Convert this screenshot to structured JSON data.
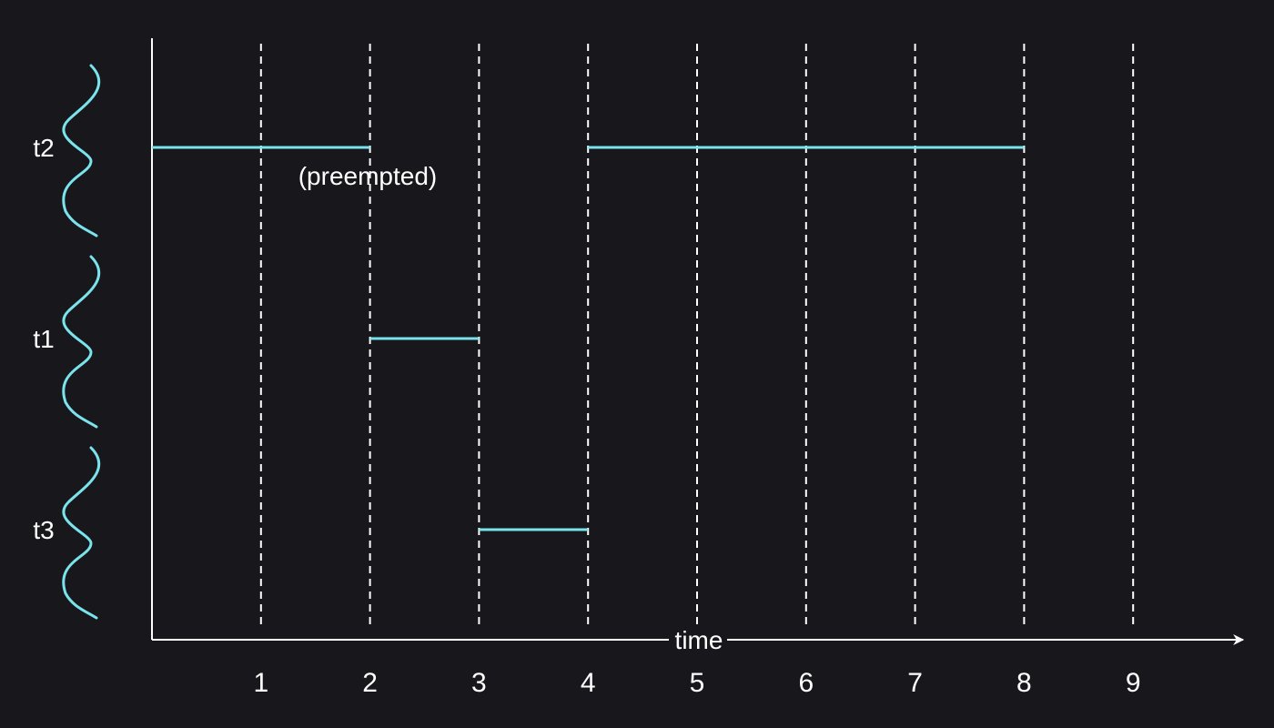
{
  "colors": {
    "background": "#18171c",
    "foreground": "#ffffff",
    "accent": "#7ae3ec"
  },
  "diagram": {
    "axis_label": "time",
    "tick_labels": [
      "1",
      "2",
      "3",
      "4",
      "5",
      "6",
      "7",
      "8",
      "9"
    ],
    "threads": [
      {
        "name": "t2",
        "icon": "thread-wave-icon",
        "runs": [
          [
            0,
            2
          ],
          [
            4,
            8
          ]
        ],
        "note": "(preempted)"
      },
      {
        "name": "t1",
        "icon": "thread-wave-icon",
        "runs": [
          [
            2,
            3
          ]
        ],
        "note": ""
      },
      {
        "name": "t3",
        "icon": "thread-wave-icon",
        "runs": [
          [
            3,
            4
          ]
        ],
        "note": ""
      }
    ]
  }
}
